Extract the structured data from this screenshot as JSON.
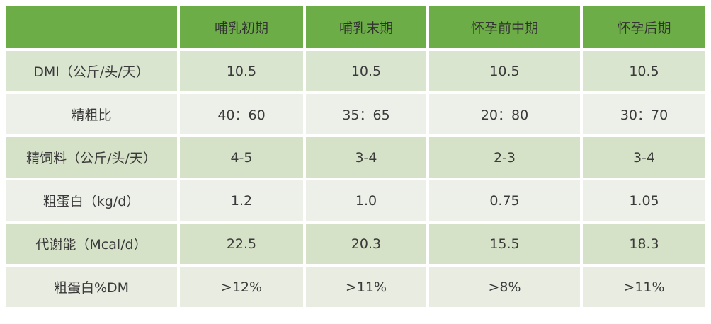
{
  "table": {
    "header": {
      "corner": "",
      "columns": [
        "哺乳初期",
        "哺乳末期",
        "怀孕前中期",
        "怀孕后期"
      ]
    },
    "rows": [
      {
        "label": "DMI（公斤/头/天）",
        "values": [
          "10.5",
          "10.5",
          "10.5",
          "10.5"
        ]
      },
      {
        "label": "精粗比",
        "values": [
          "40：60",
          "35：65",
          "20：80",
          "30：70"
        ]
      },
      {
        "label": "精饲料（公斤/头/天）",
        "values": [
          "4-5",
          "3-4",
          "2-3",
          "3-4"
        ]
      },
      {
        "label": "粗蛋白（kg/d）",
        "values": [
          "1.2",
          "1.0",
          "0.75",
          "1.05"
        ]
      },
      {
        "label": "代谢能（Mcal/d）",
        "values": [
          "22.5",
          "20.3",
          "15.5",
          "18.3"
        ]
      },
      {
        "label": "粗蛋白%DM",
        "values": [
          ">12%",
          ">11%",
          ">8%",
          ">11%"
        ]
      }
    ]
  },
  "colors": {
    "header_bg": "#6dad47",
    "header_text": "#323232",
    "body_text": "#3a3a3a",
    "row_backgrounds": [
      "#dae5d0",
      "#edf0e9",
      "#d6e2c8",
      "#edf0e9",
      "#d6e2c8",
      "#e8ece1"
    ]
  },
  "chart_data": {
    "type": "table",
    "columns": [
      "",
      "哺乳初期",
      "哺乳末期",
      "怀孕前中期",
      "怀孕后期"
    ],
    "rows": [
      [
        "DMI（公斤/头/天）",
        "10.5",
        "10.5",
        "10.5",
        "10.5"
      ],
      [
        "精粗比",
        "40：60",
        "35：65",
        "20：80",
        "30：70"
      ],
      [
        "精饲料（公斤/头/天）",
        "4-5",
        "3-4",
        "2-3",
        "3-4"
      ],
      [
        "粗蛋白（kg/d）",
        "1.2",
        "1.0",
        "0.75",
        "1.05"
      ],
      [
        "代谢能（Mcal/d）",
        "22.5",
        "20.3",
        "15.5",
        "18.3"
      ],
      [
        "粗蛋白%DM",
        ">12%",
        ">11%",
        ">8%",
        ">11%"
      ]
    ]
  }
}
